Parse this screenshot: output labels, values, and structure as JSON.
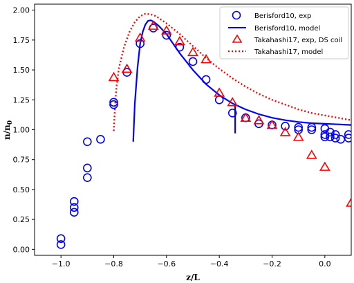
{
  "chart_data": {
    "type": "scatter",
    "xlabel": "z/L",
    "ylabel": "n/n",
    "ylabel_sub": "0",
    "xlim": [
      -1.1,
      0.1
    ],
    "ylim": [
      -0.05,
      2.05
    ],
    "xticks": [
      -1.0,
      -0.8,
      -0.6,
      -0.4,
      -0.2,
      0.0
    ],
    "xtick_labels": [
      "−1.0",
      "−0.8",
      "−0.6",
      "−0.4",
      "−0.2",
      "0.0"
    ],
    "yticks": [
      0.0,
      0.25,
      0.5,
      0.75,
      1.0,
      1.25,
      1.5,
      1.75,
      2.0
    ],
    "ytick_labels": [
      "0.00",
      "0.25",
      "0.50",
      "0.75",
      "1.00",
      "1.25",
      "1.50",
      "1.75",
      "2.00"
    ],
    "legend_position": "top-right",
    "series": [
      {
        "name": "Berisford10, exp",
        "kind": "scatter",
        "marker": "circle",
        "color": "#0000ff",
        "points": [
          [
            -1.0,
            0.04
          ],
          [
            -1.0,
            0.09
          ],
          [
            -0.95,
            0.31
          ],
          [
            -0.95,
            0.35
          ],
          [
            -0.95,
            0.4
          ],
          [
            -0.9,
            0.6
          ],
          [
            -0.9,
            0.68
          ],
          [
            -0.9,
            0.9
          ],
          [
            -0.85,
            0.92
          ],
          [
            -0.8,
            1.21
          ],
          [
            -0.8,
            1.23
          ],
          [
            -0.75,
            1.48
          ],
          [
            -0.7,
            1.72
          ],
          [
            -0.65,
            1.85
          ],
          [
            -0.6,
            1.79
          ],
          [
            -0.55,
            1.69
          ],
          [
            -0.5,
            1.57
          ],
          [
            -0.45,
            1.42
          ],
          [
            -0.4,
            1.25
          ],
          [
            -0.35,
            1.14
          ],
          [
            -0.3,
            1.1
          ],
          [
            -0.25,
            1.05
          ],
          [
            -0.2,
            1.04
          ],
          [
            -0.15,
            1.03
          ],
          [
            -0.1,
            1.02
          ],
          [
            -0.1,
            1.0
          ],
          [
            -0.05,
            1.02
          ],
          [
            -0.05,
            1.0
          ],
          [
            0.0,
            1.01
          ],
          [
            0.0,
            0.96
          ],
          [
            0.0,
            0.94
          ],
          [
            0.02,
            0.98
          ],
          [
            0.02,
            0.94
          ],
          [
            0.04,
            0.96
          ],
          [
            0.04,
            0.93
          ],
          [
            0.06,
            0.92
          ],
          [
            0.09,
            0.96
          ],
          [
            0.09,
            0.93
          ]
        ]
      },
      {
        "name": "Berisford10, model",
        "kind": "line",
        "style": "solid",
        "color": "#0000ff",
        "points": [
          [
            -0.726,
            0.9
          ],
          [
            -0.72,
            1.22
          ],
          [
            -0.71,
            1.52
          ],
          [
            -0.7,
            1.72
          ],
          [
            -0.69,
            1.82
          ],
          [
            -0.68,
            1.88
          ],
          [
            -0.67,
            1.91
          ],
          [
            -0.66,
            1.915
          ],
          [
            -0.65,
            1.905
          ],
          [
            -0.63,
            1.87
          ],
          [
            -0.6,
            1.8
          ],
          [
            -0.55,
            1.64
          ],
          [
            -0.5,
            1.5
          ],
          [
            -0.45,
            1.38
          ],
          [
            -0.4,
            1.29
          ],
          [
            -0.35,
            1.22
          ],
          [
            -0.3,
            1.17
          ],
          [
            -0.25,
            1.13
          ],
          [
            -0.2,
            1.1
          ],
          [
            -0.15,
            1.08
          ],
          [
            -0.1,
            1.065
          ],
          [
            -0.05,
            1.055
          ],
          [
            0.0,
            1.05
          ],
          [
            0.05,
            1.045
          ],
          [
            0.1,
            1.04
          ]
        ],
        "extra_segment": [
          [
            -0.34,
            1.2
          ],
          [
            -0.34,
            0.97
          ]
        ]
      },
      {
        "name": "Takahashi17, exp, DS coil",
        "kind": "scatter",
        "marker": "triangle",
        "color": "#ff0000",
        "points": [
          [
            -0.8,
            1.44
          ],
          [
            -0.75,
            1.51
          ],
          [
            -0.7,
            1.77
          ],
          [
            -0.65,
            1.87
          ],
          [
            -0.6,
            1.83
          ],
          [
            -0.55,
            1.74
          ],
          [
            -0.5,
            1.65
          ],
          [
            -0.45,
            1.59
          ],
          [
            -0.4,
            1.31
          ],
          [
            -0.35,
            1.23
          ],
          [
            -0.3,
            1.1
          ],
          [
            -0.25,
            1.08
          ],
          [
            -0.2,
            1.04
          ],
          [
            -0.15,
            0.98
          ],
          [
            -0.1,
            0.94
          ],
          [
            -0.05,
            0.79
          ],
          [
            0.0,
            0.69
          ],
          [
            0.1,
            0.39
          ]
        ]
      },
      {
        "name": "Takahashi17, model",
        "kind": "line",
        "style": "dotted",
        "color": "#ff0000",
        "points": [
          [
            -0.8,
            0.99
          ],
          [
            -0.795,
            1.2
          ],
          [
            -0.79,
            1.35
          ],
          [
            -0.78,
            1.52
          ],
          [
            -0.76,
            1.7
          ],
          [
            -0.74,
            1.82
          ],
          [
            -0.72,
            1.9
          ],
          [
            -0.7,
            1.95
          ],
          [
            -0.68,
            1.97
          ],
          [
            -0.66,
            1.965
          ],
          [
            -0.64,
            1.95
          ],
          [
            -0.6,
            1.89
          ],
          [
            -0.55,
            1.8
          ],
          [
            -0.5,
            1.7
          ],
          [
            -0.45,
            1.6
          ],
          [
            -0.4,
            1.51
          ],
          [
            -0.35,
            1.43
          ],
          [
            -0.3,
            1.36
          ],
          [
            -0.25,
            1.3
          ],
          [
            -0.2,
            1.25
          ],
          [
            -0.15,
            1.21
          ],
          [
            -0.1,
            1.17
          ],
          [
            -0.05,
            1.14
          ],
          [
            0.0,
            1.12
          ],
          [
            0.05,
            1.1
          ],
          [
            0.1,
            1.08
          ]
        ]
      }
    ]
  }
}
